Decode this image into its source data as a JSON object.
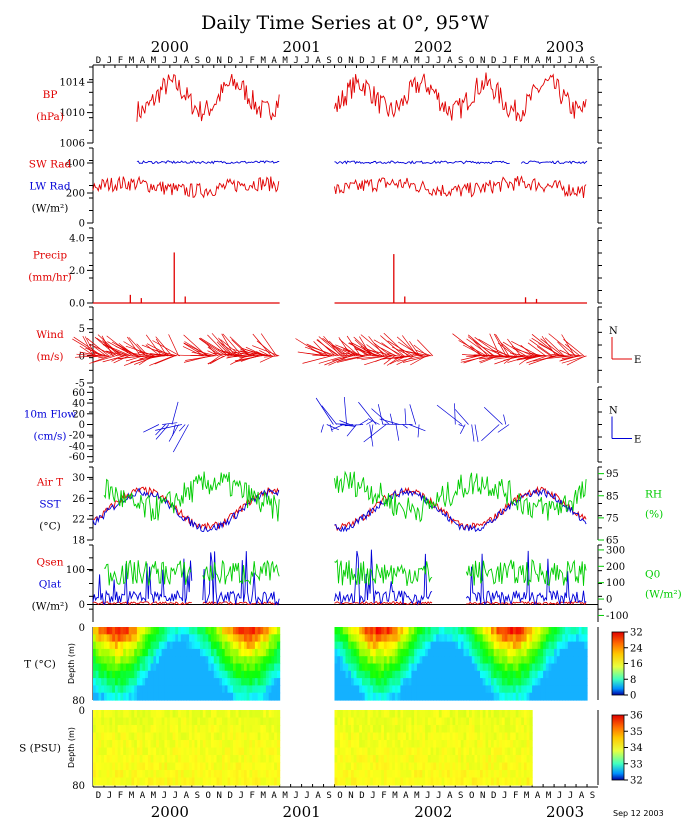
{
  "title": "Daily Time Series at 0°, 95°W",
  "date_stamp": "Sep 12 2003",
  "colors": {
    "red": "#e00000",
    "blue": "#0000d8",
    "green": "#00cc00",
    "black": "#000000"
  },
  "time_axis": {
    "start": "1999-12",
    "end": "2003-09",
    "month_letters": [
      "D",
      "J",
      "F",
      "M",
      "A",
      "M",
      "J",
      "J",
      "A",
      "S",
      "O",
      "N",
      "D",
      "J",
      "F",
      "M",
      "A",
      "M",
      "J",
      "J",
      "A",
      "S",
      "O",
      "N",
      "D",
      "J",
      "F",
      "M",
      "A",
      "M",
      "J",
      "J",
      "A",
      "S",
      "O",
      "N",
      "D",
      "J",
      "F",
      "M",
      "A",
      "M",
      "J",
      "J",
      "A",
      "S"
    ],
    "years": [
      "2000",
      "2001",
      "2002",
      "2003"
    ]
  },
  "chart_data": [
    {
      "type": "line",
      "id": "bp",
      "ylabel_lines": [
        "BP",
        "(hPa)"
      ],
      "ylim": [
        1006,
        1016
      ],
      "yticks": [
        "1014",
        "1010",
        "1006"
      ],
      "series": [
        {
          "name": "BP",
          "color": "#e00000",
          "segments": [
            [
              "2000-04",
              "2001-05"
            ],
            [
              "2001-10",
              "2003-09"
            ]
          ],
          "mean": 1012,
          "amplitude": 1.8
        }
      ]
    },
    {
      "type": "line",
      "id": "rad",
      "ylabel_lines": [
        "SW Rad",
        "LW Rad",
        "(W/m²)"
      ],
      "ylim": [
        0,
        500
      ],
      "yticks": [
        "400",
        "200",
        "0"
      ],
      "series": [
        {
          "name": "SW Rad",
          "color": "#e00000",
          "segments": [
            [
              "1999-12",
              "2001-05"
            ],
            [
              "2001-10",
              "2003-09"
            ]
          ],
          "mean": 240,
          "amplitude": 45
        },
        {
          "name": "LW Rad",
          "color": "#0000d8",
          "segments": [
            [
              "2000-04",
              "2001-05"
            ],
            [
              "2001-10",
              "2003-02"
            ],
            [
              "2003-03",
              "2003-09"
            ]
          ],
          "mean": 405,
          "amplitude": 8
        }
      ]
    },
    {
      "type": "bar",
      "id": "precip",
      "ylabel_lines": [
        "Precip",
        "(mm/hr)"
      ],
      "ylim": [
        0,
        4.6
      ],
      "yticks": [
        "4.0",
        "2.0",
        "0.0"
      ],
      "series": [
        {
          "name": "Precip",
          "color": "#e00000",
          "segments": [
            [
              "1999-12",
              "2001-05"
            ],
            [
              "2001-10",
              "2003-09"
            ]
          ],
          "spikes": [
            [
              "2000-03",
              0.5
            ],
            [
              "2000-04",
              0.3
            ],
            [
              "2000-07",
              3.1
            ],
            [
              "2000-08",
              0.4
            ],
            [
              "2002-03",
              3.0
            ],
            [
              "2002-04",
              0.4
            ],
            [
              "2003-03",
              0.35
            ],
            [
              "2003-04",
              0.25
            ]
          ]
        }
      ]
    },
    {
      "type": "vector",
      "id": "wind",
      "ylabel_lines": [
        "Wind",
        "(m/s)"
      ],
      "ylim": [
        -5,
        9
      ],
      "yticks": [
        "5",
        "0",
        "-5"
      ],
      "compass": [
        "N",
        "E"
      ],
      "series": [
        {
          "name": "Wind",
          "color": "#e00000",
          "segments": [
            [
              "1999-12",
              "2000-08"
            ],
            [
              "2000-10",
              "2001-05"
            ],
            [
              "2001-09",
              "2002-07"
            ],
            [
              "2002-11",
              "2003-09"
            ]
          ]
        }
      ]
    },
    {
      "type": "vector",
      "id": "flow",
      "ylabel_lines": [
        "10m Flow",
        "(cm/s)"
      ],
      "ylim": [
        -70,
        70
      ],
      "yticks": [
        "60",
        "40",
        "20",
        "0",
        "-20",
        "-40",
        "-60"
      ],
      "compass": [
        "N",
        "E"
      ],
      "series": [
        {
          "name": "10m Flow",
          "color": "#0000d8",
          "segments": [
            [
              "2000-06",
              "2000-09"
            ],
            [
              "2001-09",
              "2002-06"
            ],
            [
              "2002-09",
              "2002-11"
            ],
            [
              "2003-01",
              "2003-02"
            ]
          ]
        }
      ]
    },
    {
      "type": "line",
      "id": "temp",
      "ylabel_lines": [
        "Air T",
        "SST",
        "(°C)"
      ],
      "ylim": [
        18,
        32
      ],
      "yticks": [
        "30",
        "26",
        "22",
        "18"
      ],
      "y2label_lines": [
        "RH",
        "(%)"
      ],
      "y2lim": [
        65,
        98
      ],
      "y2ticks": [
        "95",
        "85",
        "75",
        "65"
      ],
      "series": [
        {
          "name": "Air T",
          "color": "#e00000",
          "segments": [
            [
              "1999-12",
              "2001-05"
            ],
            [
              "2001-10",
              "2003-09"
            ]
          ]
        },
        {
          "name": "SST",
          "color": "#0000d8",
          "segments": [
            [
              "1999-12",
              "2001-05"
            ],
            [
              "2001-10",
              "2003-09"
            ]
          ]
        },
        {
          "name": "RH",
          "color": "#00cc00",
          "segments": [
            [
              "2000-01",
              "2001-05"
            ],
            [
              "2001-10",
              "2003-09"
            ]
          ]
        }
      ]
    },
    {
      "type": "line",
      "id": "heatflux",
      "ylabel_lines": [
        "Qsen",
        "Qlat",
        "(W/m²)"
      ],
      "ylim": [
        -50,
        170
      ],
      "yticks": [
        "100",
        "0"
      ],
      "y2label_lines": [
        "Q0",
        "(W/m²)"
      ],
      "y2lim": [
        -140,
        330
      ],
      "y2ticks": [
        "300",
        "200",
        "100",
        "0",
        "-100"
      ],
      "series": [
        {
          "name": "Qsen",
          "color": "#e00000",
          "segments": [
            [
              "1999-12",
              "2000-09"
            ],
            [
              "2000-10",
              "2001-05"
            ],
            [
              "2001-10",
              "2002-07"
            ],
            [
              "2002-10",
              "2003-09"
            ]
          ]
        },
        {
          "name": "Qlat",
          "color": "#0000d8",
          "segments": [
            [
              "1999-12",
              "2000-09"
            ],
            [
              "2000-10",
              "2001-05"
            ],
            [
              "2001-10",
              "2002-07"
            ],
            [
              "2002-10",
              "2003-09"
            ]
          ]
        },
        {
          "name": "Q0",
          "color": "#00cc00",
          "segments": [
            [
              "2000-01",
              "2000-09"
            ],
            [
              "2000-10",
              "2001-05"
            ],
            [
              "2001-10",
              "2002-07"
            ],
            [
              "2002-10",
              "2003-09"
            ]
          ]
        }
      ]
    },
    {
      "type": "heatmap",
      "id": "tdepth",
      "ylabel": "T (°C)",
      "depth_label": "Depth (m)",
      "yticks": [
        "0",
        "80"
      ],
      "colorbar_ticks": [
        "32",
        "24",
        "16",
        "8",
        "0"
      ],
      "zlim": [
        0,
        32
      ],
      "segments": [
        [
          "1999-12",
          "2001-05"
        ],
        [
          "2001-10",
          "2003-09"
        ]
      ]
    },
    {
      "type": "heatmap",
      "id": "sdepth",
      "ylabel": "S (PSU)",
      "depth_label": "Depth (m)",
      "yticks": [
        "0",
        "80"
      ],
      "colorbar_ticks": [
        "36",
        "35",
        "34",
        "33",
        "32"
      ],
      "zlim": [
        32,
        36.5
      ],
      "segments": [
        [
          "1999-12",
          "2001-05"
        ],
        [
          "2001-10",
          "2003-04"
        ]
      ]
    }
  ]
}
